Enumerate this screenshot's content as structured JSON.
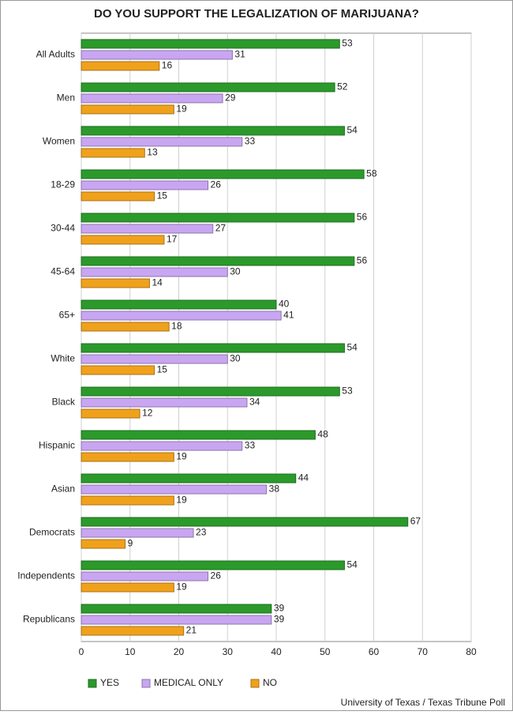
{
  "chart_data": {
    "type": "hbar",
    "title": "DO YOU SUPPORT THE LEGALIZATION OF MARIJUANA?",
    "categories": [
      "All Adults",
      "Men",
      "Women",
      "18-29",
      "30-44",
      "45-64",
      "65+",
      "White",
      "Black",
      "Hispanic",
      "Asian",
      "Democrats",
      "Independents",
      "Republicans"
    ],
    "series": [
      {
        "name": "YES",
        "color": "#2b9a2b",
        "values": [
          53,
          52,
          54,
          58,
          56,
          56,
          40,
          54,
          53,
          48,
          44,
          67,
          54,
          39
        ]
      },
      {
        "name": "MEDICAL ONLY",
        "color": "#c9a6f2",
        "values": [
          31,
          29,
          33,
          26,
          27,
          30,
          41,
          30,
          34,
          33,
          38,
          23,
          26,
          39
        ]
      },
      {
        "name": "NO",
        "color": "#f0a11c",
        "values": [
          16,
          19,
          13,
          15,
          17,
          14,
          18,
          15,
          12,
          19,
          19,
          9,
          19,
          21
        ]
      }
    ],
    "xlim": [
      0,
      80
    ],
    "xticks": [
      0,
      10,
      20,
      30,
      40,
      50,
      60,
      70,
      80
    ],
    "grid": true,
    "legend": "bottom",
    "source": "University of Texas /  Texas Tribune Poll"
  }
}
